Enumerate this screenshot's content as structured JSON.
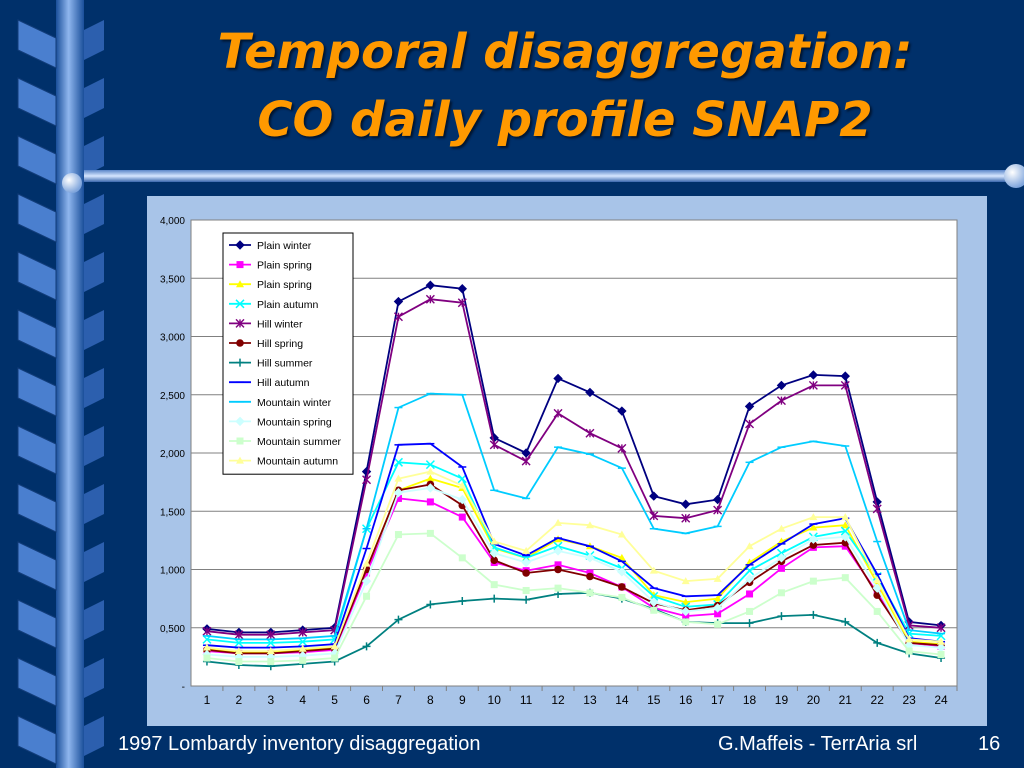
{
  "slide": {
    "title_line1": "Temporal disaggregation:",
    "title_line2": "CO daily profile SNAP2",
    "footer_left": "1997 Lombardy inventory disaggregation",
    "footer_author": "G.Maffeis - TerrAria srl",
    "page_number": "16"
  },
  "colors": {
    "background": "#00306a",
    "title": "#ff9900",
    "panel": "#a8c4e8"
  },
  "chart_data": {
    "type": "line",
    "x": [
      1,
      2,
      3,
      4,
      5,
      6,
      7,
      8,
      9,
      10,
      11,
      12,
      13,
      14,
      15,
      16,
      17,
      18,
      19,
      20,
      21,
      22,
      23,
      24
    ],
    "ylim": [
      0,
      4.0
    ],
    "yticks": [
      0,
      0.5,
      1.0,
      1.5,
      2.0,
      2.5,
      3.0,
      3.5,
      4.0
    ],
    "ytick_labels": [
      "-",
      "0,500",
      "1,000",
      "1,500",
      "2,000",
      "2,500",
      "3,000",
      "3,500",
      "4,000"
    ],
    "grid": true,
    "legend": "top-left",
    "series": [
      {
        "name": "Plain winter",
        "color": "#000080",
        "marker": "diamond",
        "values": [
          0.49,
          0.46,
          0.46,
          0.48,
          0.5,
          1.84,
          3.3,
          3.44,
          3.41,
          2.13,
          2.0,
          2.64,
          2.52,
          2.36,
          1.63,
          1.56,
          1.6,
          2.4,
          2.58,
          2.67,
          2.66,
          1.58,
          0.55,
          0.52
        ]
      },
      {
        "name": "Plain spring",
        "color": "#ff00ff",
        "marker": "square",
        "values": [
          0.3,
          0.28,
          0.28,
          0.29,
          0.31,
          0.97,
          1.61,
          1.58,
          1.45,
          1.06,
          0.99,
          1.04,
          0.97,
          0.85,
          0.67,
          0.6,
          0.62,
          0.79,
          1.01,
          1.19,
          1.2,
          0.8,
          0.37,
          0.34
        ]
      },
      {
        "name": "Plain spring",
        "color": "#ffff00",
        "marker": "triangle",
        "values": [
          0.32,
          0.29,
          0.29,
          0.31,
          0.33,
          1.0,
          1.68,
          1.78,
          1.7,
          1.18,
          1.1,
          1.26,
          1.2,
          1.1,
          0.78,
          0.72,
          0.75,
          1.06,
          1.24,
          1.36,
          1.38,
          0.88,
          0.38,
          0.36
        ]
      },
      {
        "name": "Plain autumn",
        "color": "#00ffff",
        "marker": "x",
        "values": [
          0.4,
          0.37,
          0.37,
          0.38,
          0.4,
          1.35,
          1.92,
          1.9,
          1.78,
          1.19,
          1.1,
          1.2,
          1.12,
          1.01,
          0.77,
          0.68,
          0.7,
          0.99,
          1.14,
          1.28,
          1.33,
          0.94,
          0.45,
          0.43
        ]
      },
      {
        "name": "Hill winter",
        "color": "#800080",
        "marker": "star",
        "values": [
          0.47,
          0.44,
          0.44,
          0.46,
          0.48,
          1.77,
          3.17,
          3.32,
          3.29,
          2.07,
          1.93,
          2.34,
          2.17,
          2.04,
          1.46,
          1.44,
          1.51,
          2.25,
          2.45,
          2.58,
          2.58,
          1.52,
          0.52,
          0.5
        ]
      },
      {
        "name": "Hill spring",
        "color": "#800000",
        "marker": "circle",
        "values": [
          0.31,
          0.28,
          0.28,
          0.3,
          0.32,
          1.0,
          1.68,
          1.73,
          1.55,
          1.08,
          0.97,
          1.0,
          0.94,
          0.85,
          0.71,
          0.65,
          0.69,
          0.89,
          1.07,
          1.21,
          1.23,
          0.78,
          0.37,
          0.35
        ]
      },
      {
        "name": "Hill summer",
        "color": "#008080",
        "marker": "plus",
        "values": [
          0.21,
          0.18,
          0.17,
          0.19,
          0.21,
          0.34,
          0.57,
          0.7,
          0.73,
          0.75,
          0.74,
          0.79,
          0.8,
          0.75,
          0.66,
          0.55,
          0.54,
          0.54,
          0.6,
          0.61,
          0.55,
          0.37,
          0.28,
          0.24
        ]
      },
      {
        "name": "Hill autumn",
        "color": "#0000ff",
        "marker": "dash",
        "values": [
          0.35,
          0.33,
          0.33,
          0.34,
          0.36,
          1.18,
          2.07,
          2.08,
          1.88,
          1.22,
          1.12,
          1.27,
          1.2,
          1.07,
          0.84,
          0.77,
          0.78,
          1.04,
          1.22,
          1.39,
          1.44,
          0.96,
          0.41,
          0.38
        ]
      },
      {
        "name": "Mountain winter",
        "color": "#00ccff",
        "marker": "dash",
        "values": [
          0.43,
          0.4,
          0.4,
          0.41,
          0.43,
          1.35,
          2.39,
          2.51,
          2.5,
          1.68,
          1.61,
          2.05,
          1.99,
          1.87,
          1.35,
          1.31,
          1.37,
          1.92,
          2.05,
          2.1,
          2.06,
          1.24,
          0.48,
          0.45
        ]
      },
      {
        "name": "Mountain spring",
        "color": "#ccffff",
        "marker": "diamond",
        "values": [
          0.27,
          0.25,
          0.25,
          0.26,
          0.28,
          0.9,
          1.66,
          1.7,
          1.6,
          1.14,
          1.06,
          1.16,
          1.1,
          0.98,
          0.72,
          0.64,
          0.67,
          0.92,
          1.1,
          1.26,
          1.28,
          0.84,
          0.35,
          0.33
        ]
      },
      {
        "name": "Mountain summer",
        "color": "#ccffcc",
        "marker": "square",
        "values": [
          0.24,
          0.21,
          0.21,
          0.22,
          0.24,
          0.77,
          1.3,
          1.31,
          1.1,
          0.87,
          0.82,
          0.84,
          0.8,
          0.76,
          0.65,
          0.55,
          0.53,
          0.64,
          0.8,
          0.9,
          0.93,
          0.64,
          0.3,
          0.27
        ]
      },
      {
        "name": "Mountain autumn",
        "color": "#ffff99",
        "marker": "triangle",
        "values": [
          0.33,
          0.3,
          0.3,
          0.32,
          0.34,
          1.05,
          1.78,
          1.84,
          1.72,
          1.24,
          1.16,
          1.4,
          1.38,
          1.3,
          0.99,
          0.9,
          0.92,
          1.2,
          1.35,
          1.45,
          1.45,
          0.91,
          0.4,
          0.38
        ]
      }
    ]
  }
}
